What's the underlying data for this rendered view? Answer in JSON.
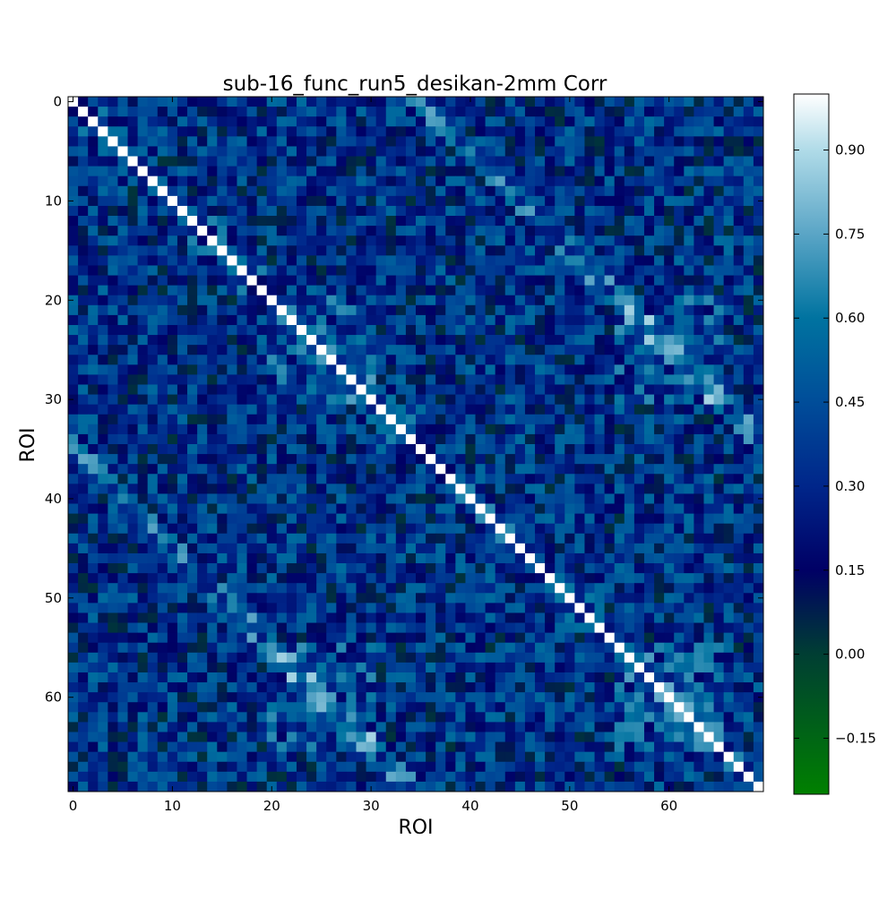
{
  "chart_data": {
    "type": "heatmap",
    "title": "sub-16_func_run5_desikan-2mm Corr",
    "xlabel": "ROI",
    "ylabel": "ROI",
    "n_rois": 70,
    "x_ticks": [
      0,
      10,
      20,
      30,
      40,
      50,
      60
    ],
    "y_ticks": [
      0,
      10,
      20,
      30,
      40,
      50,
      60
    ],
    "diagonal_value": 1.0,
    "value_range": [
      -0.25,
      1.0
    ],
    "colormap": "ocean",
    "colorbar": {
      "ticks": [
        -0.15,
        0.0,
        0.15,
        0.3,
        0.45,
        0.6,
        0.75,
        0.9
      ],
      "tick_labels": [
        "−0.15",
        "0.00",
        "0.15",
        "0.30",
        "0.45",
        "0.60",
        "0.75",
        "0.90"
      ],
      "range": [
        -0.25,
        1.0
      ]
    },
    "colorscale": [
      {
        "value": -0.25,
        "color": "#008000"
      },
      {
        "value": 0.0,
        "color": "#003e33"
      },
      {
        "value": 0.15,
        "color": "#000065"
      },
      {
        "value": 0.3,
        "color": "#00268a"
      },
      {
        "value": 0.45,
        "color": "#004d99"
      },
      {
        "value": 0.6,
        "color": "#0073a0"
      },
      {
        "value": 0.75,
        "color": "#5aa5c6"
      },
      {
        "value": 0.9,
        "color": "#b0dbe8"
      },
      {
        "value": 1.0,
        "color": "#ffffff"
      }
    ],
    "grid": false,
    "legend": "none"
  }
}
